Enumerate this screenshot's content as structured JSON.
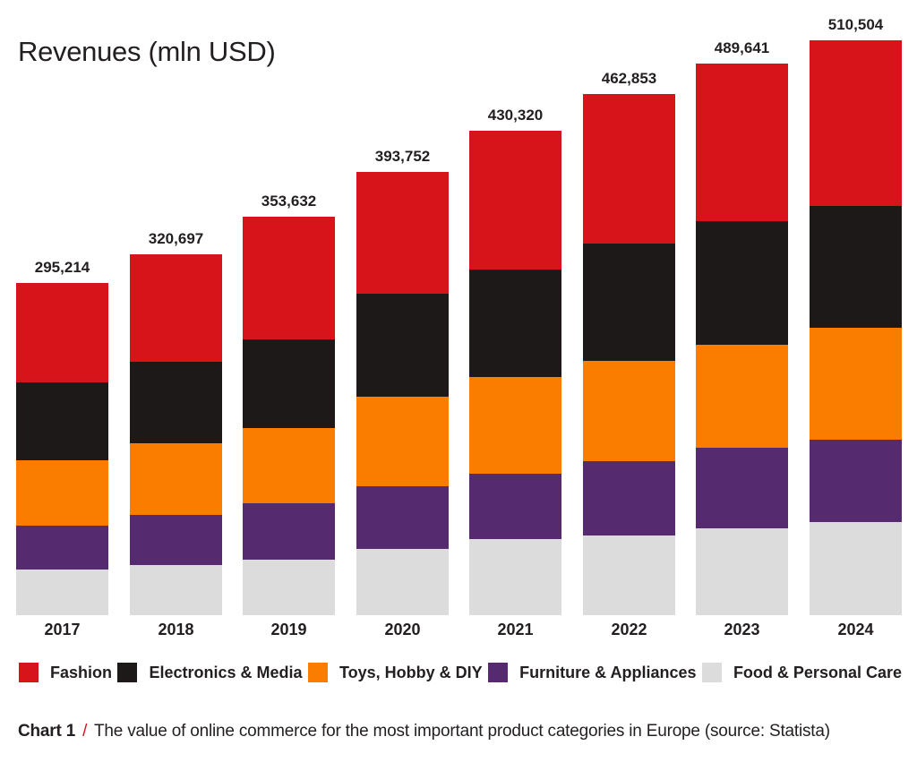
{
  "title": "Revenues (mln USD)",
  "caption": {
    "label": "Chart 1",
    "separator": "/",
    "text": "The value of online commerce for the most important product categories in Europe (source: Statista)"
  },
  "colors": {
    "background": "#ffffff",
    "text": "#231f20",
    "accent_red": "#d7141a"
  },
  "chart_data": {
    "type": "bar",
    "stacked": true,
    "title": "Revenues (mln USD)",
    "xlabel": "",
    "ylabel": "Revenues (mln USD)",
    "grid": false,
    "legend_position": "bottom",
    "value_labels": "total above each bar",
    "categories": [
      "2017",
      "2018",
      "2019",
      "2020",
      "2021",
      "2022",
      "2023",
      "2024"
    ],
    "totals": [
      295214,
      320697,
      353632,
      393752,
      430320,
      462853,
      489641,
      510504
    ],
    "totals_formatted": [
      "295,214",
      "320,697",
      "353,632",
      "393,752",
      "430,320",
      "462,853",
      "489,641",
      "510,504"
    ],
    "series": [
      {
        "name": "Fashion",
        "color": "#d7141a",
        "stack_position": "top",
        "values": [
          88400,
          95800,
          108600,
          108200,
          123100,
          132800,
          139900,
          146800
        ]
      },
      {
        "name": "Electronics & Media",
        "color": "#1e1919",
        "stack_position": "2",
        "values": [
          69500,
          72100,
          79300,
          91500,
          96100,
          104200,
          109700,
          108500
        ]
      },
      {
        "name": "Toys, Hobby & DIY",
        "color": "#fb7d00",
        "stack_position": "3",
        "values": [
          57600,
          64100,
          66600,
          79550,
          85750,
          89100,
          91400,
          99700
        ]
      },
      {
        "name": "Furniture & Appliances",
        "color": "#552a6e",
        "stack_position": "4",
        "values": [
          39500,
          44350,
          49950,
          55700,
          57950,
          66000,
          71500,
          72600
        ]
      },
      {
        "name": "Food & Personal Care",
        "color": "#dcdcdc",
        "stack_position": "bottom",
        "values": [
          40214,
          44347,
          49182,
          58802,
          67420,
          70753,
          77141,
          82904
        ]
      }
    ],
    "note": "segment values estimated from bar proportions; sums equal labeled totals"
  }
}
